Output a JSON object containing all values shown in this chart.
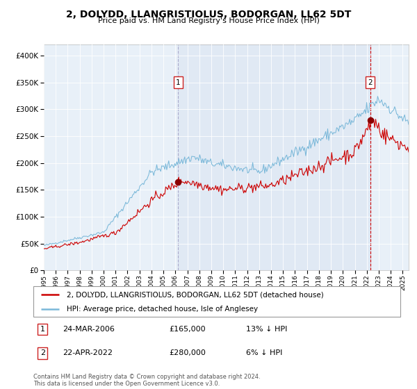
{
  "title": "2, DOLYDD, LLANGRISTIOLUS, BODORGAN, LL62 5DT",
  "subtitle": "Price paid vs. HM Land Registry's House Price Index (HPI)",
  "legend_line1": "2, DOLYDD, LLANGRISTIOLUS, BODORGAN, LL62 5DT (detached house)",
  "legend_line2": "HPI: Average price, detached house, Isle of Anglesey",
  "sale1_date": "24-MAR-2006",
  "sale1_price": "£165,000",
  "sale1_hpi": "13% ↓ HPI",
  "sale2_date": "22-APR-2022",
  "sale2_price": "£280,000",
  "sale2_hpi": "6% ↓ HPI",
  "footer": "Contains HM Land Registry data © Crown copyright and database right 2024.\nThis data is licensed under the Open Government Licence v3.0.",
  "hpi_color": "#7ab8d9",
  "price_color": "#cc0000",
  "sale_dot_color": "#8b0000",
  "plot_bg": "#e8f0f8",
  "sale1_year": 2006.23,
  "sale1_value": 165000,
  "sale2_year": 2022.3,
  "sale2_value": 280000,
  "xmin": 1995.0,
  "xmax": 2025.5,
  "ymin": 0,
  "ymax": 420000
}
